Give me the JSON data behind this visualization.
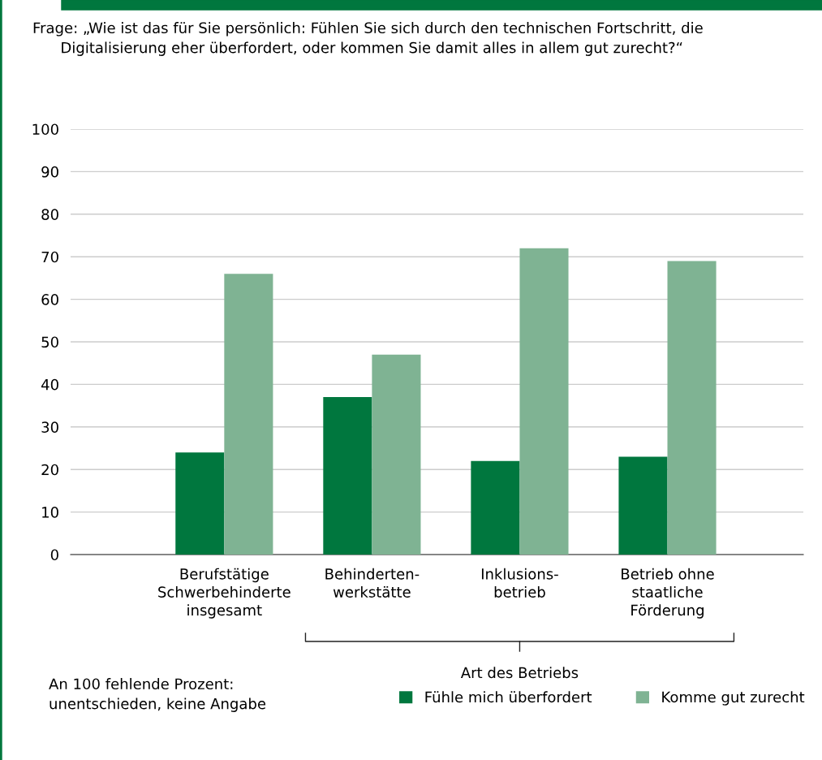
{
  "chart_data": {
    "type": "bar",
    "title": "Frage: „Wie ist das für Sie persönlich: Fühlen Sie sich durch den technischen Fortschritt, die\n      Digitalisierung eher überfordert, oder kommen Sie damit alles in allem gut zurecht?“",
    "categories": [
      "Berufstätige\nSchwerbehinderte\ninsgesamt",
      "Behinderten-\nwerkstätte",
      "Inklusions-\nbetrieb",
      "Betrieb ohne\nstaatliche\nFörderung"
    ],
    "series": [
      {
        "name": "Fühle mich überfordert",
        "color": "#00773e",
        "values": [
          24,
          37,
          22,
          23
        ]
      },
      {
        "name": "Komme gut zurecht",
        "color": "#7fb393",
        "values": [
          66,
          47,
          72,
          69
        ]
      }
    ],
    "ylim": [
      0,
      100
    ],
    "yticks": [
      0,
      10,
      20,
      30,
      40,
      50,
      60,
      70,
      80,
      90,
      100
    ],
    "grid": "y",
    "legend": "bottom right",
    "annotations": [
      "Art des Betriebs",
      "An 100 fehlende Prozent:\nunentschieden, keine Angabe"
    ]
  }
}
